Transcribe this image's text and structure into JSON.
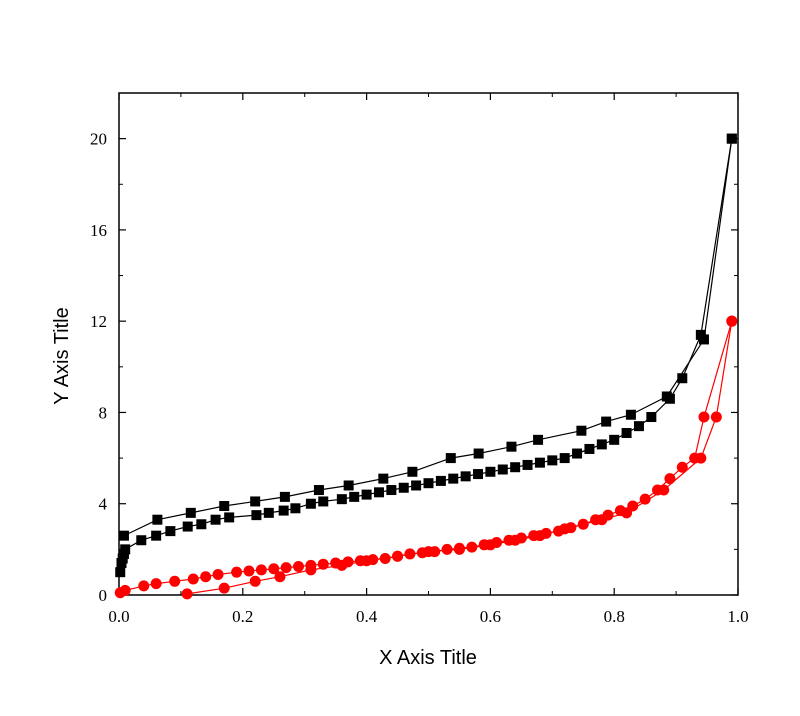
{
  "chart_data": {
    "type": "scatter",
    "xlabel": "X Axis Title",
    "ylabel": "Y Axis Title",
    "xlim": [
      0,
      1.0
    ],
    "ylim": [
      0,
      22
    ],
    "x_ticks": [
      0.0,
      0.2,
      0.4,
      0.6,
      0.8,
      1.0
    ],
    "x_tick_labels": [
      "0.0",
      "0.2",
      "0.4",
      "0.6",
      "0.8",
      "1.0"
    ],
    "y_ticks": [
      0,
      4,
      8,
      12,
      16,
      20
    ],
    "y_tick_labels": [
      "0",
      "4",
      "8",
      "12",
      "16",
      "20"
    ],
    "grid": false,
    "legend": "none",
    "series": [
      {
        "marker": "square",
        "color": "#000000",
        "x": [
          0.002,
          0.004,
          0.006,
          0.008,
          0.01,
          0.036,
          0.06,
          0.083,
          0.111,
          0.133,
          0.156,
          0.178,
          0.222,
          0.242,
          0.266,
          0.285,
          0.31,
          0.33,
          0.36,
          0.38,
          0.4,
          0.42,
          0.44,
          0.46,
          0.48,
          0.5,
          0.52,
          0.54,
          0.56,
          0.58,
          0.6,
          0.62,
          0.64,
          0.66,
          0.68,
          0.7,
          0.72,
          0.74,
          0.76,
          0.78,
          0.8,
          0.82,
          0.84,
          0.86,
          0.89,
          0.91,
          0.94,
          0.99
        ],
        "y": [
          1.0,
          1.4,
          1.6,
          1.8,
          2.0,
          2.4,
          2.6,
          2.8,
          3.0,
          3.1,
          3.3,
          3.4,
          3.5,
          3.6,
          3.7,
          3.8,
          4.0,
          4.1,
          4.2,
          4.3,
          4.4,
          4.5,
          4.6,
          4.7,
          4.8,
          4.9,
          5.0,
          5.1,
          5.2,
          5.3,
          5.4,
          5.5,
          5.6,
          5.7,
          5.8,
          5.9,
          6.0,
          6.2,
          6.4,
          6.6,
          6.8,
          7.1,
          7.4,
          7.8,
          8.6,
          9.5,
          11.4,
          20.0
        ]
      },
      {
        "marker": "square",
        "color": "#000000",
        "x": [
          0.99,
          0.945,
          0.885,
          0.827,
          0.787,
          0.747,
          0.677,
          0.634,
          0.581,
          0.536,
          0.474,
          0.427,
          0.371,
          0.323,
          0.268,
          0.22,
          0.17,
          0.116,
          0.062,
          0.008
        ],
        "y": [
          20.0,
          11.2,
          8.7,
          7.9,
          7.6,
          7.2,
          6.8,
          6.5,
          6.2,
          6.0,
          5.4,
          5.1,
          4.8,
          4.6,
          4.3,
          4.1,
          3.9,
          3.6,
          3.3,
          2.6
        ]
      },
      {
        "marker": "circle",
        "color": "#ff0000",
        "x": [
          0.002,
          0.01,
          0.04,
          0.06,
          0.09,
          0.12,
          0.14,
          0.16,
          0.19,
          0.21,
          0.23,
          0.25,
          0.27,
          0.29,
          0.31,
          0.33,
          0.35,
          0.37,
          0.39,
          0.41,
          0.43,
          0.45,
          0.47,
          0.49,
          0.51,
          0.53,
          0.55,
          0.57,
          0.59,
          0.61,
          0.63,
          0.65,
          0.67,
          0.69,
          0.71,
          0.73,
          0.75,
          0.77,
          0.79,
          0.81,
          0.83,
          0.85,
          0.87,
          0.89,
          0.91,
          0.93,
          0.945,
          0.99
        ],
        "y": [
          0.1,
          0.2,
          0.4,
          0.5,
          0.6,
          0.7,
          0.8,
          0.9,
          1.0,
          1.05,
          1.1,
          1.15,
          1.2,
          1.25,
          1.3,
          1.35,
          1.4,
          1.45,
          1.5,
          1.55,
          1.6,
          1.7,
          1.8,
          1.85,
          1.9,
          2.0,
          2.05,
          2.1,
          2.2,
          2.3,
          2.4,
          2.5,
          2.6,
          2.7,
          2.8,
          2.95,
          3.1,
          3.3,
          3.5,
          3.7,
          3.9,
          4.2,
          4.6,
          5.1,
          5.6,
          6.0,
          7.8,
          12.0
        ]
      },
      {
        "marker": "circle",
        "color": "#ff0000",
        "x": [
          0.99,
          0.965,
          0.94,
          0.88,
          0.82,
          0.78,
          0.72,
          0.68,
          0.64,
          0.6,
          0.55,
          0.5,
          0.45,
          0.4,
          0.36,
          0.31,
          0.26,
          0.22,
          0.17,
          0.11
        ],
        "y": [
          12.0,
          7.8,
          6.0,
          4.6,
          3.6,
          3.3,
          2.9,
          2.6,
          2.4,
          2.2,
          2.0,
          1.9,
          1.7,
          1.5,
          1.3,
          1.1,
          0.8,
          0.6,
          0.3,
          0.05
        ]
      }
    ]
  }
}
